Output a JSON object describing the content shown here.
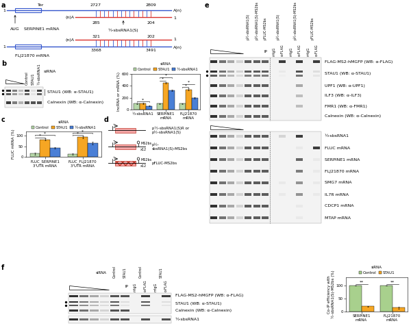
{
  "panel_labels": [
    "a",
    "b",
    "c",
    "d",
    "e",
    "f"
  ],
  "a": {
    "serpine1_mrna": {
      "name": "SERPINE1 mRNA",
      "start": "1",
      "start_codon": "AUG",
      "stop_codon": "Ter",
      "region": [
        "2727",
        "2809"
      ],
      "tail": "A(n)"
    },
    "sbsrna1_on_serpine1": {
      "name": "½-sbsRNA1(S)",
      "tail": "(n)A",
      "region": [
        "285",
        "204"
      ],
      "end": "1"
    },
    "sbsrna1_on_flj21870": {
      "tail": "(n)A",
      "region": [
        "321",
        "202"
      ],
      "end": "1"
    },
    "flj21870_mrna": {
      "name": "FLJ21870 mRNA",
      "start": "1",
      "region": [
        "3368",
        "3491"
      ],
      "tail": "A(n)"
    }
  },
  "b_blot": {
    "header": "siRNA",
    "lanes": [
      "Control",
      "STAU1",
      "½-sbsRNA1"
    ],
    "rows": [
      "STAU1 (WB: α-STAU1)",
      "Calnexin (WB: α-Calnexin)"
    ]
  },
  "d": {
    "constructs": [
      {
        "label": "p½-sbsRNA1(S)R or p½-sbsRNA1(S)",
        "ms2bs": false,
        "hatched": false
      },
      {
        "label": "p½-sbsRNA1(S)-MS2bs",
        "ms2bs": true,
        "hatched": false
      },
      {
        "label": "pFLUC-MS2bs",
        "ms2bs": true,
        "hatched": true
      }
    ],
    "ms2bs_text": "MS2bs",
    "repeat_text": "x12"
  },
  "e": {
    "constructs": [
      "p½-sbsRNA1(S)",
      "p½-sbsRNA1(S)-MS2bs",
      "pFLUC-MS2bs"
    ],
    "ip": "IP",
    "ip_lanes": [
      "mIgG",
      "α-FLAG"
    ],
    "protein_rows": [
      "FLAG-MS2-hMGFP (WB: α-FLAG)",
      "STAU1 (WB: α-STAU1)",
      "UPF1 (WB: α-UPF1)",
      "ILF3 (WB: α-ILF3)",
      "FMR1 (WB: α-FMR1)",
      "Calnexin (WB: α-Calnexin)"
    ],
    "rna_rows": [
      "½-sbsRNA1",
      "FLUC mRNA",
      "SERPINE1 mRNA",
      "FLJ21870 mRNA",
      "SMG7 mRNA",
      "IL7R mRNA",
      "CDCP1 mRNA",
      "MTAP mRNA"
    ]
  },
  "f_blot": {
    "header": "siRNA",
    "groups": [
      "Control",
      "STAU1"
    ],
    "ip": "IP",
    "ip_lanes": [
      "mIgG",
      "α-FLAG"
    ],
    "protein_rows": [
      "FLAG-MS2-hMGFP (WB: α-FLAG)",
      "STAU1 (WB: α-STAU1)",
      "Calnexin (WB: α-Calnexin)"
    ],
    "rna_rows": [
      "½-sbsRNA1"
    ]
  },
  "chart_data": [
    {
      "type": "bar",
      "ylabel": "lncRNA or mRNA (%)",
      "categories": [
        "½-sbsRNA1",
        "SERPINE1 mRNA",
        "FLJ21870 mRNA"
      ],
      "series": [
        {
          "name": "Control",
          "color": "#b6d7a8",
          "values": [
            100,
            100,
            100
          ],
          "errors": [
            8,
            6,
            6
          ]
        },
        {
          "name": "STAU1",
          "color": "#f6a623",
          "values": [
            102,
            450,
            340
          ],
          "errors": [
            10,
            15,
            15
          ]
        },
        {
          "name": "½-sbsRNA1",
          "color": "#4a7fd6",
          "values": [
            60,
            320,
            200
          ],
          "errors": [
            6,
            12,
            10
          ]
        }
      ],
      "ylim": [
        0,
        600
      ],
      "yticks": [
        0,
        200,
        400,
        600
      ],
      "legend": "top",
      "legend_title": "siRNA",
      "significance": [
        {
          "category": 0,
          "series": [
            0,
            2
          ],
          "label": "*"
        },
        {
          "category": 1,
          "series": [
            0,
            1
          ],
          "label": "*"
        },
        {
          "category": 1,
          "series": [
            0,
            2
          ],
          "label": "*"
        },
        {
          "category": 2,
          "series": [
            0,
            1
          ],
          "label": "*"
        },
        {
          "category": 2,
          "series": [
            0,
            2
          ],
          "label": "*"
        }
      ]
    },
    {
      "type": "bar",
      "ylabel": "FLUC mRNA (%)",
      "categories": [
        "FLUC_SERPINE1 3'UTR mRNA",
        "FLUC_FLJ21870 3'UTR mRNA"
      ],
      "series": [
        {
          "name": "Control",
          "color": "#b6d7a8",
          "values": [
            15,
            12
          ],
          "errors": [
            4,
            3
          ]
        },
        {
          "name": "STAU1",
          "color": "#f6a623",
          "values": [
            82,
            93
          ],
          "errors": [
            5,
            5
          ]
        },
        {
          "name": "½-sbsRNA1",
          "color": "#4a7fd6",
          "values": [
            42,
            65
          ],
          "errors": [
            4,
            6
          ]
        }
      ],
      "ylim": [
        0,
        120
      ],
      "yticks": [
        0,
        50,
        100
      ],
      "legend": "top",
      "legend_title": "siRNA",
      "significance": [
        {
          "category": 0,
          "series": [
            0,
            1
          ],
          "label": "*"
        },
        {
          "category": 0,
          "series": [
            0,
            2
          ],
          "label": "*"
        },
        {
          "category": 1,
          "series": [
            0,
            1
          ],
          "label": "*"
        },
        {
          "category": 1,
          "series": [
            0,
            2
          ],
          "label": "*"
        }
      ]
    },
    {
      "type": "bar",
      "ylabel": "Co-IP efficiency with ½-sbsRNA1(S)-MS2bs (%)",
      "categories": [
        "SERPINE1 mRNA",
        "FLJ21870 mRNA"
      ],
      "series": [
        {
          "name": "Control",
          "color": "#a8d08d",
          "values": [
            100,
            100
          ],
          "errors": [
            0,
            0
          ]
        },
        {
          "name": "STAU1",
          "color": "#f6a623",
          "values": [
            20,
            15
          ],
          "errors": [
            2,
            4
          ]
        }
      ],
      "ylim": [
        0,
        130
      ],
      "yticks": [
        0,
        50,
        100
      ],
      "legend": "top",
      "legend_title": "siRNA",
      "significance": [
        {
          "category": 0,
          "series": [
            0,
            1
          ],
          "label": "**"
        },
        {
          "category": 1,
          "series": [
            0,
            1
          ],
          "label": "**"
        }
      ]
    }
  ]
}
